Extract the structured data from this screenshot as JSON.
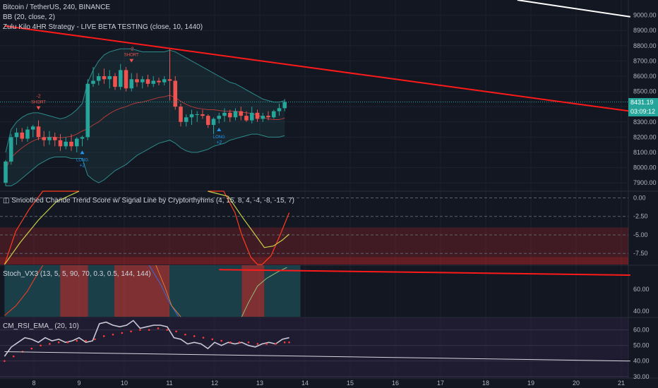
{
  "header": {
    "symbol_line": "Bitcoin / TetherUS, 240, BINANCE",
    "bb_line": "BB (20, close, 2)",
    "strategy_line": "Zulu Kilo 4HR Strategy - LIVE BETA TESTING (close, 10, 1440)"
  },
  "price_tags": {
    "last_price": "8431.19",
    "countdown": "03:09:12"
  },
  "signals": [
    {
      "label": "SHORT",
      "qty": "-2",
      "type": "short"
    },
    {
      "label": "SHORT",
      "qty": "-2",
      "type": "short"
    },
    {
      "label": "LONG",
      "qty": "+2",
      "type": "long"
    },
    {
      "label": "LONG",
      "qty": "+2",
      "type": "long"
    }
  ],
  "colors": {
    "background": "#131722",
    "bull": "#26a69a",
    "bear": "#ef5350",
    "trendline": "#ff1a1a",
    "axis_text": "#b2b5be",
    "long_signal": "#2196f3",
    "short_signal": "#ef5350",
    "bb_band": "#2e8b8b"
  },
  "chart_data": [
    {
      "type": "candlestick",
      "title": "Bitcoin / TetherUS, 240, BINANCE",
      "overlays": [
        "BB (20, close, 2)",
        "Zulu Kilo 4HR Strategy - LIVE BETA TESTING (close, 10, 1440)"
      ],
      "y_ticks": [
        "9000.00",
        "8900.00",
        "8800.00",
        "8700.00",
        "8600.00",
        "8500.00",
        "8400.00",
        "8300.00",
        "8200.00",
        "8100.00",
        "8000.00",
        "7900.00"
      ],
      "ylim": [
        7850,
        9100
      ],
      "x_ticks": [
        "8",
        "9",
        "10",
        "11",
        "12",
        "13",
        "14",
        "15",
        "16",
        "17",
        "18",
        "19",
        "20",
        "21"
      ],
      "candles": [
        {
          "o": 7900,
          "h": 8050,
          "l": 7880,
          "c": 8040
        },
        {
          "o": 8040,
          "h": 8220,
          "l": 8020,
          "c": 8200
        },
        {
          "o": 8200,
          "h": 8260,
          "l": 8150,
          "c": 8230
        },
        {
          "o": 8230,
          "h": 8260,
          "l": 8170,
          "c": 8190
        },
        {
          "o": 8190,
          "h": 8270,
          "l": 8170,
          "c": 8250
        },
        {
          "o": 8250,
          "h": 8280,
          "l": 8200,
          "c": 8270
        },
        {
          "o": 8270,
          "h": 8310,
          "l": 8180,
          "c": 8200
        },
        {
          "o": 8200,
          "h": 8240,
          "l": 8140,
          "c": 8180
        },
        {
          "o": 8180,
          "h": 8240,
          "l": 8150,
          "c": 8200
        },
        {
          "o": 8200,
          "h": 8230,
          "l": 8140,
          "c": 8180
        },
        {
          "o": 8180,
          "h": 8220,
          "l": 8110,
          "c": 8140
        },
        {
          "o": 8140,
          "h": 8200,
          "l": 8120,
          "c": 8170
        },
        {
          "o": 8170,
          "h": 8220,
          "l": 8110,
          "c": 8140
        },
        {
          "o": 8140,
          "h": 8200,
          "l": 8100,
          "c": 8190
        },
        {
          "o": 8190,
          "h": 8210,
          "l": 8140,
          "c": 8200
        },
        {
          "o": 8200,
          "h": 8580,
          "l": 8180,
          "c": 8550
        },
        {
          "o": 8550,
          "h": 8660,
          "l": 8530,
          "c": 8570
        },
        {
          "o": 8570,
          "h": 8620,
          "l": 8540,
          "c": 8600
        },
        {
          "o": 8600,
          "h": 8650,
          "l": 8550,
          "c": 8580
        },
        {
          "o": 8580,
          "h": 8640,
          "l": 8520,
          "c": 8600
        },
        {
          "o": 8600,
          "h": 8620,
          "l": 8510,
          "c": 8530
        },
        {
          "o": 8530,
          "h": 8680,
          "l": 8510,
          "c": 8640
        },
        {
          "o": 8640,
          "h": 8660,
          "l": 8500,
          "c": 8520
        },
        {
          "o": 8520,
          "h": 8620,
          "l": 8500,
          "c": 8580
        },
        {
          "o": 8580,
          "h": 8620,
          "l": 8530,
          "c": 8560
        },
        {
          "o": 8560,
          "h": 8600,
          "l": 8520,
          "c": 8580
        },
        {
          "o": 8580,
          "h": 8610,
          "l": 8530,
          "c": 8550
        },
        {
          "o": 8550,
          "h": 8600,
          "l": 8530,
          "c": 8570
        },
        {
          "o": 8570,
          "h": 8590,
          "l": 8540,
          "c": 8560
        },
        {
          "o": 8560,
          "h": 8600,
          "l": 8540,
          "c": 8580
        },
        {
          "o": 8580,
          "h": 8780,
          "l": 8440,
          "c": 8570
        },
        {
          "o": 8570,
          "h": 8600,
          "l": 8380,
          "c": 8400
        },
        {
          "o": 8400,
          "h": 8420,
          "l": 8270,
          "c": 8300
        },
        {
          "o": 8300,
          "h": 8350,
          "l": 8270,
          "c": 8330
        },
        {
          "o": 8330,
          "h": 8380,
          "l": 8280,
          "c": 8350
        },
        {
          "o": 8350,
          "h": 8370,
          "l": 8300,
          "c": 8350
        },
        {
          "o": 8350,
          "h": 8380,
          "l": 8320,
          "c": 8340
        },
        {
          "o": 8340,
          "h": 8350,
          "l": 8260,
          "c": 8280
        },
        {
          "o": 8280,
          "h": 8330,
          "l": 8220,
          "c": 8320
        },
        {
          "o": 8320,
          "h": 8360,
          "l": 8290,
          "c": 8340
        },
        {
          "o": 8340,
          "h": 8390,
          "l": 8300,
          "c": 8360
        },
        {
          "o": 8360,
          "h": 8380,
          "l": 8300,
          "c": 8330
        },
        {
          "o": 8330,
          "h": 8390,
          "l": 8310,
          "c": 8370
        },
        {
          "o": 8370,
          "h": 8400,
          "l": 8310,
          "c": 8340
        },
        {
          "o": 8340,
          "h": 8370,
          "l": 8300,
          "c": 8310
        },
        {
          "o": 8310,
          "h": 8400,
          "l": 8290,
          "c": 8360
        },
        {
          "o": 8360,
          "h": 8380,
          "l": 8300,
          "c": 8320
        },
        {
          "o": 8320,
          "h": 8360,
          "l": 8300,
          "c": 8340
        },
        {
          "o": 8340,
          "h": 8370,
          "l": 8310,
          "c": 8330
        },
        {
          "o": 8330,
          "h": 8380,
          "l": 8320,
          "c": 8370
        },
        {
          "o": 8370,
          "h": 8420,
          "l": 8340,
          "c": 8390
        },
        {
          "o": 8390,
          "h": 8450,
          "l": 8370,
          "c": 8431
        }
      ],
      "bb_upper": [
        8100,
        8250,
        8300,
        8330,
        8350,
        8360,
        8360,
        8350,
        8340,
        8330,
        8320,
        8330,
        8350,
        8380,
        8420,
        8560,
        8640,
        8700,
        8740,
        8760,
        8770,
        8780,
        8780,
        8780,
        8770,
        8760,
        8760,
        8760,
        8760,
        8760,
        8770,
        8760,
        8740,
        8720,
        8700,
        8680,
        8660,
        8640,
        8620,
        8600,
        8580,
        8560,
        8550,
        8530,
        8510,
        8490,
        8470,
        8450,
        8440,
        8430,
        8430,
        8440
      ],
      "bb_lower": [
        7880,
        7880,
        7900,
        7930,
        7960,
        7990,
        8020,
        8040,
        8060,
        8070,
        8070,
        8070,
        8060,
        8060,
        8060,
        7950,
        7920,
        7900,
        7920,
        7950,
        7980,
        8000,
        8020,
        8050,
        8080,
        8100,
        8120,
        8140,
        8160,
        8170,
        8180,
        8160,
        8130,
        8110,
        8100,
        8100,
        8110,
        8120,
        8140,
        8150,
        8160,
        8180,
        8190,
        8200,
        8210,
        8220,
        8220,
        8210,
        8200,
        8200,
        8200,
        8210
      ],
      "trendline": {
        "from": {
          "day": 7.35,
          "price": 8930
        },
        "to": {
          "day": 21.2,
          "price": 8370
        }
      },
      "secondary_line": {
        "from": {
          "day": 18.7,
          "price": 9100
        },
        "to": {
          "day": 21.2,
          "price": 8990
        }
      }
    },
    {
      "type": "line",
      "title": "◫ Smoothed Chande Trend Score w/ Signal Line by Cryptorthyhms (4, 15, 8, 4, -4, -8, -15, 7)",
      "y_ticks": [
        "0.00",
        "-2.50",
        "-5.00",
        "-7.50"
      ],
      "ylim": [
        -9.0,
        0.9
      ],
      "zone": [
        -8.0,
        -4.0
      ],
      "series": [
        {
          "color": "#ff3b1f",
          "x": [
            7.35,
            7.6,
            7.9,
            8.2,
            8.6,
            9.0
          ],
          "y": [
            -9.0,
            -4.5,
            -1.5,
            0.9,
            0.9,
            0.9
          ]
        },
        {
          "color": "#c8d04a",
          "x": [
            7.35,
            7.7,
            8.1,
            8.5,
            9.0
          ],
          "y": [
            -9.0,
            -6.0,
            -3.0,
            -0.5,
            0.9
          ]
        },
        {
          "color": "#ff3b1f",
          "x": [
            11.85,
            12.2,
            12.45,
            12.6,
            12.8,
            12.95,
            13.05,
            13.25,
            13.45,
            13.65
          ],
          "y": [
            0.9,
            0.9,
            -2.0,
            -5.0,
            -8.0,
            -9.0,
            -9.0,
            -7.8,
            -5.0,
            -2.0
          ]
        },
        {
          "color": "#c8d04a",
          "x": [
            11.85,
            12.3,
            12.6,
            12.9,
            13.1,
            13.3,
            13.5,
            13.65
          ],
          "y": [
            0.9,
            0.2,
            -2.5,
            -5.0,
            -6.7,
            -6.5,
            -5.7,
            -4.9
          ]
        }
      ]
    },
    {
      "type": "line",
      "title": "Stoch_VX3 (13, 5, 5, 90, 70, 0.3, 0.5, 144, 144)",
      "y_ticks": [
        "60.00",
        "40.00"
      ],
      "ylim": [
        35,
        82
      ],
      "regions": [
        {
          "from": 7.35,
          "to": 8.58,
          "color": "teal"
        },
        {
          "from": 8.58,
          "to": 9.2,
          "color": "red"
        },
        {
          "from": 9.2,
          "to": 9.78,
          "color": "teal"
        },
        {
          "from": 9.78,
          "to": 11.0,
          "color": "red"
        },
        {
          "from": 11.0,
          "to": 12.6,
          "color": "teal"
        },
        {
          "from": 12.6,
          "to": 13.1,
          "color": "red"
        },
        {
          "from": 13.1,
          "to": 13.9,
          "color": "teal"
        }
      ],
      "series": [
        {
          "color": "#ff3b1f",
          "x": [
            7.35,
            7.6,
            7.85,
            8.05,
            8.2
          ],
          "y": [
            36,
            45,
            58,
            72,
            82
          ]
        },
        {
          "color": "#3b6be0",
          "x": [
            10.55,
            10.8,
            11.0,
            11.2
          ],
          "y": [
            82,
            65,
            48,
            35
          ]
        },
        {
          "color": "#e07a2a",
          "x": [
            10.7,
            10.9,
            11.05,
            11.25
          ],
          "y": [
            82,
            62,
            45,
            35
          ]
        },
        {
          "color": "#8fbf7a",
          "x": [
            12.6,
            12.75,
            12.95,
            13.15,
            13.4,
            13.6
          ],
          "y": [
            35,
            48,
            63,
            70,
            76,
            80
          ]
        },
        {
          "color": "#ff1a1a",
          "x": [
            12.1,
            21.2
          ],
          "y": [
            78,
            73
          ]
        }
      ]
    },
    {
      "type": "line",
      "title": "CM_RSI_EMA_ (20, 10)",
      "y_ticks": [
        "60.00",
        "50.00",
        "40.00",
        "30.00"
      ],
      "ylim": [
        29,
        68
      ],
      "rsi": {
        "x": [
          7.35,
          7.5,
          7.65,
          7.8,
          7.95,
          8.1,
          8.25,
          8.4,
          8.55,
          8.7,
          8.85,
          9.0,
          9.15,
          9.3,
          9.45,
          9.6,
          9.75,
          9.9,
          10.05,
          10.2,
          10.35,
          10.5,
          10.65,
          10.8,
          10.95,
          11.1,
          11.25,
          11.4,
          11.55,
          11.7,
          11.85,
          12.0,
          12.15,
          12.3,
          12.45,
          12.6,
          12.75,
          12.9,
          13.05,
          13.2,
          13.35,
          13.5,
          13.65
        ],
        "y": [
          43,
          49,
          52,
          55,
          54,
          52,
          55,
          53,
          54,
          52,
          53,
          55,
          52,
          53,
          64,
          65,
          63,
          62,
          63,
          66,
          61,
          62,
          63,
          63,
          62,
          55,
          54,
          51,
          52,
          51,
          48,
          52,
          50,
          52,
          51,
          52,
          50,
          49,
          51,
          52,
          51,
          54,
          55
        ]
      },
      "ema": {
        "x": [
          7.35,
          7.55,
          7.75,
          7.95,
          8.15,
          8.35,
          8.55,
          8.75,
          8.95,
          9.15,
          9.35,
          9.55,
          9.75,
          9.95,
          10.15,
          10.35,
          10.55,
          10.75,
          10.95,
          11.15,
          11.35,
          11.55,
          11.75,
          11.95,
          12.15,
          12.35,
          12.55,
          12.75,
          12.95,
          13.15,
          13.35,
          13.55,
          13.65
        ],
        "y": [
          40,
          43,
          46,
          48,
          50,
          51,
          52,
          52,
          53,
          53,
          54,
          56,
          57,
          58,
          59,
          60,
          60,
          61,
          60,
          59,
          57,
          56,
          55,
          54,
          53,
          52,
          52,
          52,
          51,
          51,
          51,
          52,
          52
        ]
      },
      "baseline": {
        "from": {
          "day": 7.35,
          "y": 46
        },
        "to": {
          "day": 21.2,
          "y": 40
        }
      }
    }
  ]
}
